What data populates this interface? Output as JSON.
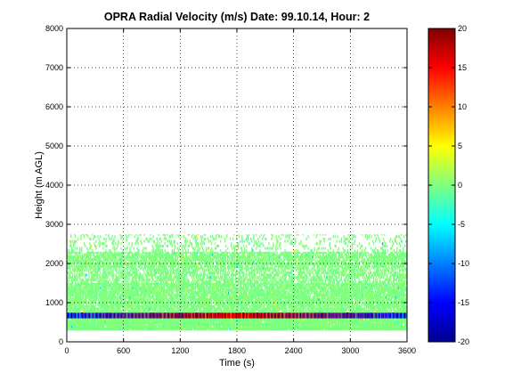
{
  "chart_data": {
    "type": "heatmap",
    "title": "OPRA Radial Velocity (m/s)  Date: 99.10.14, Hour: 2",
    "xlabel": "Time (s)",
    "ylabel": "Height (m AGL)",
    "xlim": [
      0,
      3600
    ],
    "ylim": [
      0,
      8000
    ],
    "x_ticks": [
      "0",
      "600",
      "1200",
      "1800",
      "2400",
      "3000",
      "3600"
    ],
    "y_ticks": [
      "0",
      "1000",
      "2000",
      "3000",
      "4000",
      "5000",
      "6000",
      "7000",
      "8000"
    ],
    "grid": true,
    "colorbar": {
      "range": [
        -20,
        20
      ],
      "ticks": [
        "20",
        "15",
        "10",
        "5",
        "0",
        "-5",
        "-10",
        "-15",
        "-20"
      ],
      "colormap": "jet"
    },
    "layers": [
      {
        "name": "low-band",
        "y_range": [
          300,
          650
        ],
        "value": 0,
        "coverage": 0.97
      },
      {
        "name": "stripe",
        "y_range": [
          600,
          750
        ],
        "value": "alternating",
        "coverage": 1.0
      },
      {
        "name": "mid-band",
        "y_range": [
          750,
          1500
        ],
        "value": 0,
        "coverage": 0.85
      },
      {
        "name": "upper-band",
        "y_range": [
          1500,
          1900
        ],
        "value": 0,
        "coverage": 0.6
      },
      {
        "name": "top-band",
        "y_range": [
          1900,
          2300
        ],
        "value": 0,
        "coverage": 0.75
      },
      {
        "name": "sparse-top",
        "y_range": [
          2300,
          2750
        ],
        "value": 0,
        "coverage": 0.2
      }
    ]
  },
  "colors": {
    "axes": "#000000",
    "grid": "#000000",
    "background": "#ffffff",
    "zero_level": "#80ff80"
  }
}
